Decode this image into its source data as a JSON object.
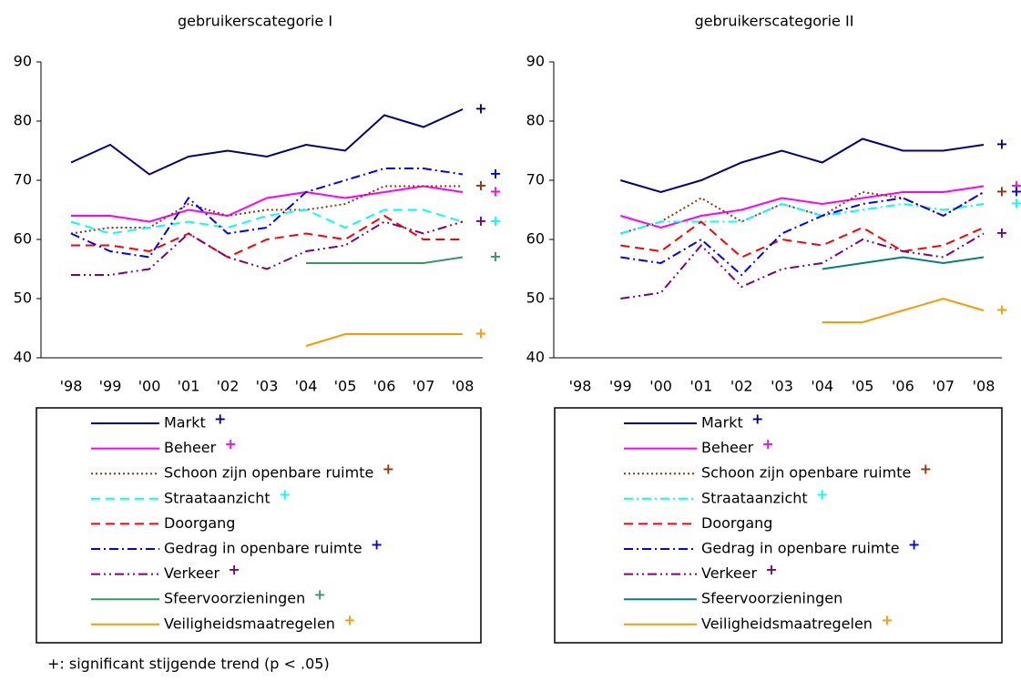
{
  "chart_data": [
    {
      "type": "line",
      "title": "gebruikerscategorie I",
      "categories": [
        "'98",
        "'99",
        "'00",
        "'01",
        "'02",
        "'03",
        "'04",
        "'05",
        "'06",
        "'07",
        "'08"
      ],
      "ylim": [
        40,
        90
      ],
      "yticks": [
        40,
        50,
        60,
        70,
        80,
        90
      ],
      "series": [
        {
          "name": "Markt",
          "color": "#000080",
          "line_style": "solid",
          "trend": "+",
          "values": [
            73,
            76,
            71,
            74,
            75,
            74,
            76,
            75,
            81,
            79,
            82
          ]
        },
        {
          "name": "Beheer",
          "color": "#ff00ff",
          "line_style": "solid",
          "trend": "+",
          "values": [
            64,
            64,
            63,
            65,
            64,
            67,
            68,
            67,
            68,
            69,
            68
          ]
        },
        {
          "name": "Schoon zijn openbare ruimte",
          "color": "#993300",
          "line_style": "dotted",
          "trend": "+",
          "values": [
            61,
            62,
            62,
            66,
            64,
            65,
            65,
            66,
            69,
            69,
            69
          ]
        },
        {
          "name": "Straataanzicht",
          "color": "#00ffff",
          "line_style": "dashed",
          "trend": "+",
          "values": [
            63,
            61,
            62,
            63,
            62,
            64,
            65,
            62,
            65,
            65,
            63
          ]
        },
        {
          "name": "Doorgang",
          "color": "#ff0000",
          "line_style": "dashed",
          "values": [
            59,
            59,
            58,
            61,
            57,
            60,
            61,
            60,
            64,
            60,
            60
          ]
        },
        {
          "name": "Gedrag in openbare ruimte",
          "color": "#0000ff",
          "line_style": "dashdot",
          "trend": "+",
          "values": [
            61,
            58,
            57,
            67,
            61,
            62,
            68,
            70,
            72,
            72,
            71
          ]
        },
        {
          "name": "Verkeer",
          "color": "#800080",
          "line_style": "dashdotdot",
          "trend": "+",
          "values": [
            54,
            54,
            55,
            61,
            57,
            55,
            58,
            59,
            63,
            61,
            63
          ]
        },
        {
          "name": "Sfeervoorzieningen",
          "color": "#339966",
          "line_style": "solid",
          "trend": "+",
          "values": [
            null,
            null,
            null,
            null,
            null,
            null,
            56,
            56,
            56,
            56,
            57
          ]
        },
        {
          "name": "Veiligheidsmaatregelen",
          "color": "#ff9900",
          "line_style": "solid",
          "trend": "+",
          "values": [
            null,
            null,
            null,
            null,
            null,
            null,
            42,
            44,
            44,
            44,
            44
          ]
        }
      ],
      "footnote": "+: significant stijgende trend (p < .05)"
    },
    {
      "type": "line",
      "title": "gebruikerscategorie II",
      "categories": [
        "'98",
        "'99",
        "'00",
        "'01",
        "'02",
        "'03",
        "'04",
        "'05",
        "'06",
        "'07",
        "'08"
      ],
      "ylim": [
        40,
        90
      ],
      "yticks": [
        40,
        50,
        60,
        70,
        80,
        90
      ],
      "series": [
        {
          "name": "Markt",
          "color": "#000080",
          "line_style": "solid",
          "trend": "+",
          "values": [
            null,
            70,
            68,
            70,
            73,
            75,
            73,
            77,
            75,
            75,
            76
          ]
        },
        {
          "name": "Beheer",
          "color": "#ff00ff",
          "line_style": "solid",
          "trend": "+",
          "values": [
            null,
            64,
            62,
            64,
            65,
            67,
            66,
            67,
            68,
            68,
            69
          ]
        },
        {
          "name": "Schoon zijn openbare ruimte",
          "color": "#993300",
          "line_style": "dotted",
          "trend": "+",
          "values": [
            null,
            61,
            63,
            67,
            63,
            66,
            64,
            68,
            67,
            64,
            68
          ]
        },
        {
          "name": "Straataanzicht",
          "color": "#00ffff",
          "line_style": "dashdot",
          "trend": "+",
          "values": [
            null,
            61,
            63,
            63,
            63,
            66,
            64,
            65,
            66,
            65,
            66
          ]
        },
        {
          "name": "Doorgang",
          "color": "#ff0000",
          "line_style": "dashed",
          "values": [
            null,
            59,
            58,
            63,
            57,
            60,
            59,
            62,
            58,
            59,
            62
          ]
        },
        {
          "name": "Gedrag in openbare ruimte",
          "color": "#0000ff",
          "line_style": "dashdot",
          "trend": "+",
          "values": [
            null,
            57,
            56,
            60,
            54,
            61,
            64,
            66,
            67,
            64,
            68
          ]
        },
        {
          "name": "Verkeer",
          "color": "#800080",
          "line_style": "dashdotdot",
          "trend": "+",
          "values": [
            null,
            50,
            51,
            59,
            52,
            55,
            56,
            60,
            58,
            57,
            61
          ]
        },
        {
          "name": "Sfeervoorzieningen",
          "color": "#008080",
          "line_style": "solid",
          "values": [
            null,
            null,
            null,
            null,
            null,
            null,
            55,
            56,
            57,
            56,
            57
          ]
        },
        {
          "name": "Veiligheidsmaatregelen",
          "color": "#ff9900",
          "line_style": "solid",
          "trend": "+",
          "values": [
            null,
            null,
            null,
            null,
            null,
            null,
            46,
            46,
            48,
            50,
            48
          ]
        }
      ]
    }
  ]
}
